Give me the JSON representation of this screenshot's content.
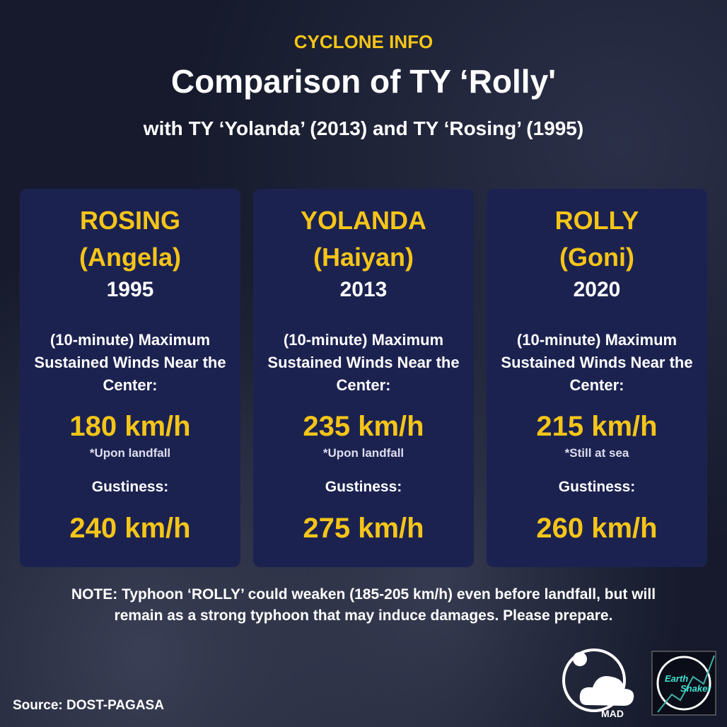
{
  "header": {
    "kicker": "CYCLONE INFO",
    "title": "Comparison of TY ‘Rolly'",
    "subtitle": "with TY ‘Yolanda’ (2013) and TY ‘Rosing’ (1995)"
  },
  "cards": [
    {
      "name": "ROSING",
      "alt_name": "(Angela)",
      "year": "1995",
      "wind_label": "(10-minute) Maximum Sustained Winds Near the Center:",
      "wind": "180 km/h",
      "wind_note": "*Upon landfall",
      "gust_label": "Gustiness:",
      "gust": "240 km/h"
    },
    {
      "name": "YOLANDA",
      "alt_name": "(Haiyan)",
      "year": "2013",
      "wind_label": "(10-minute) Maximum Sustained Winds Near the Center:",
      "wind": "235 km/h",
      "wind_note": "*Upon landfall",
      "gust_label": "Gustiness:",
      "gust": "275 km/h"
    },
    {
      "name": "ROLLY",
      "alt_name": "(Goni)",
      "year": "2020",
      "wind_label": "(10-minute) Maximum Sustained Winds Near the Center:",
      "wind": "215 km/h",
      "wind_note": "*Still at sea",
      "gust_label": "Gustiness:",
      "gust": "260 km/h"
    }
  ],
  "note": "NOTE: Typhoon ‘ROLLY’ could weaken (185-205 km/h) even before landfall, but will remain as a strong typhoon that may induce damages. Please prepare.",
  "source": "Source: DOST-PAGASA",
  "logos": {
    "mad": "MAD",
    "earth": "Earth",
    "shaker": "Shaker"
  }
}
